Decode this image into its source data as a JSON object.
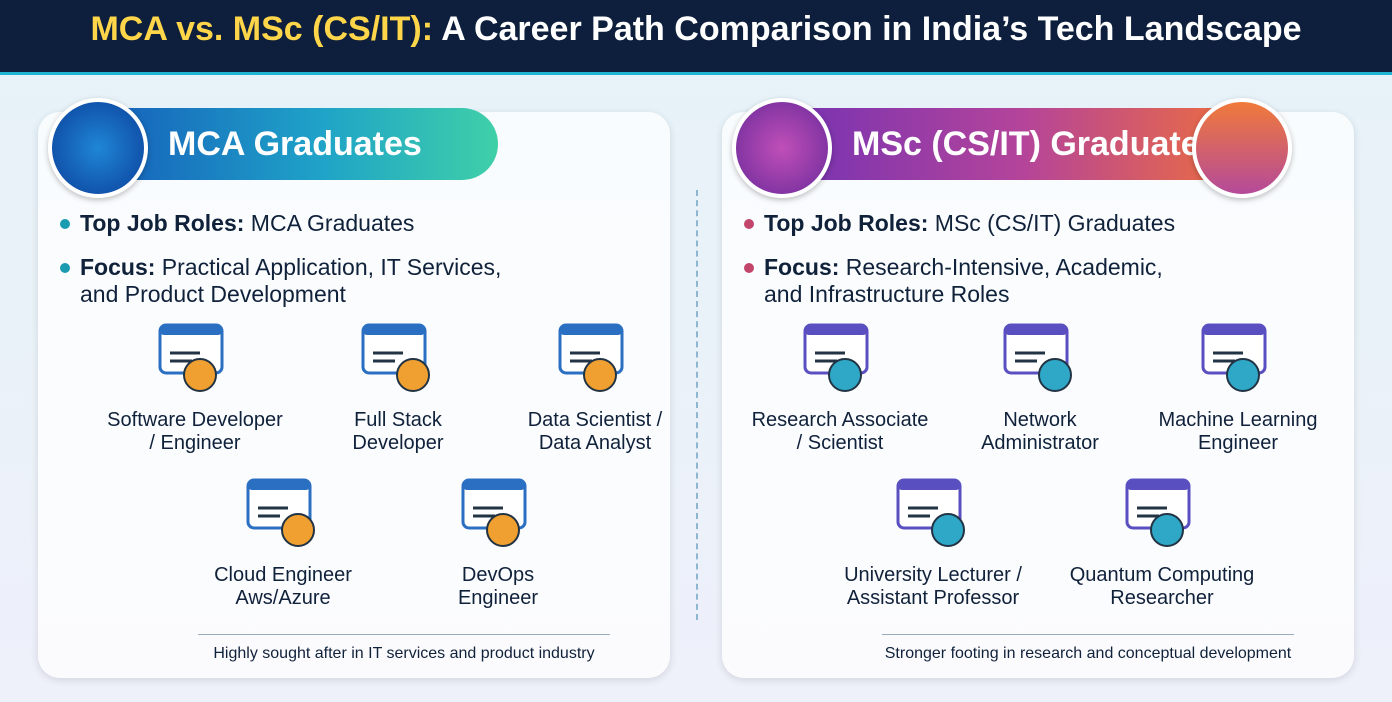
{
  "header": {
    "title_highlight": "MCA vs. MSc (CS/IT):",
    "title_rest": "A Career Path Comparison in India’s Tech Landscape"
  },
  "panels": [
    {
      "heading": "MCA Graduates",
      "bullets": [
        {
          "label": "Top Job Roles:",
          "text": "MCA Graduates"
        },
        {
          "label": "Focus:",
          "text": [
            "Practical Application, IT Services,",
            "and Product Development"
          ]
        }
      ],
      "roles": [
        [
          "Software Developer",
          "/ Engineer"
        ],
        [
          "Full Stack",
          "Developer"
        ],
        [
          "Data Scientist /",
          "Data Analyst"
        ],
        [
          "Cloud Engineer",
          "Aws/Azure"
        ],
        [
          "DevOps",
          "Engineer"
        ]
      ],
      "footer": "Highly sought after in IT services and product industry"
    },
    {
      "heading": "MSc (CS/IT) Graduates",
      "bullets": [
        {
          "label": "Top Job Roles:",
          "text": "MSc (CS/IT) Graduates"
        },
        {
          "label": "Focus:",
          "text": [
            "Research-Intensive, Academic,",
            "and Infrastructure Roles"
          ]
        }
      ],
      "roles": [
        [
          "Research Associate",
          "/ Scientist"
        ],
        [
          "Network",
          "Administrator"
        ],
        [
          "Machine Learning",
          "Engineer"
        ],
        [
          "University Lecturer /",
          "Assistant Professor"
        ],
        [
          "Quantum Computing",
          "Researcher"
        ]
      ],
      "footer": "Stronger footing in research and conceptual development"
    }
  ]
}
